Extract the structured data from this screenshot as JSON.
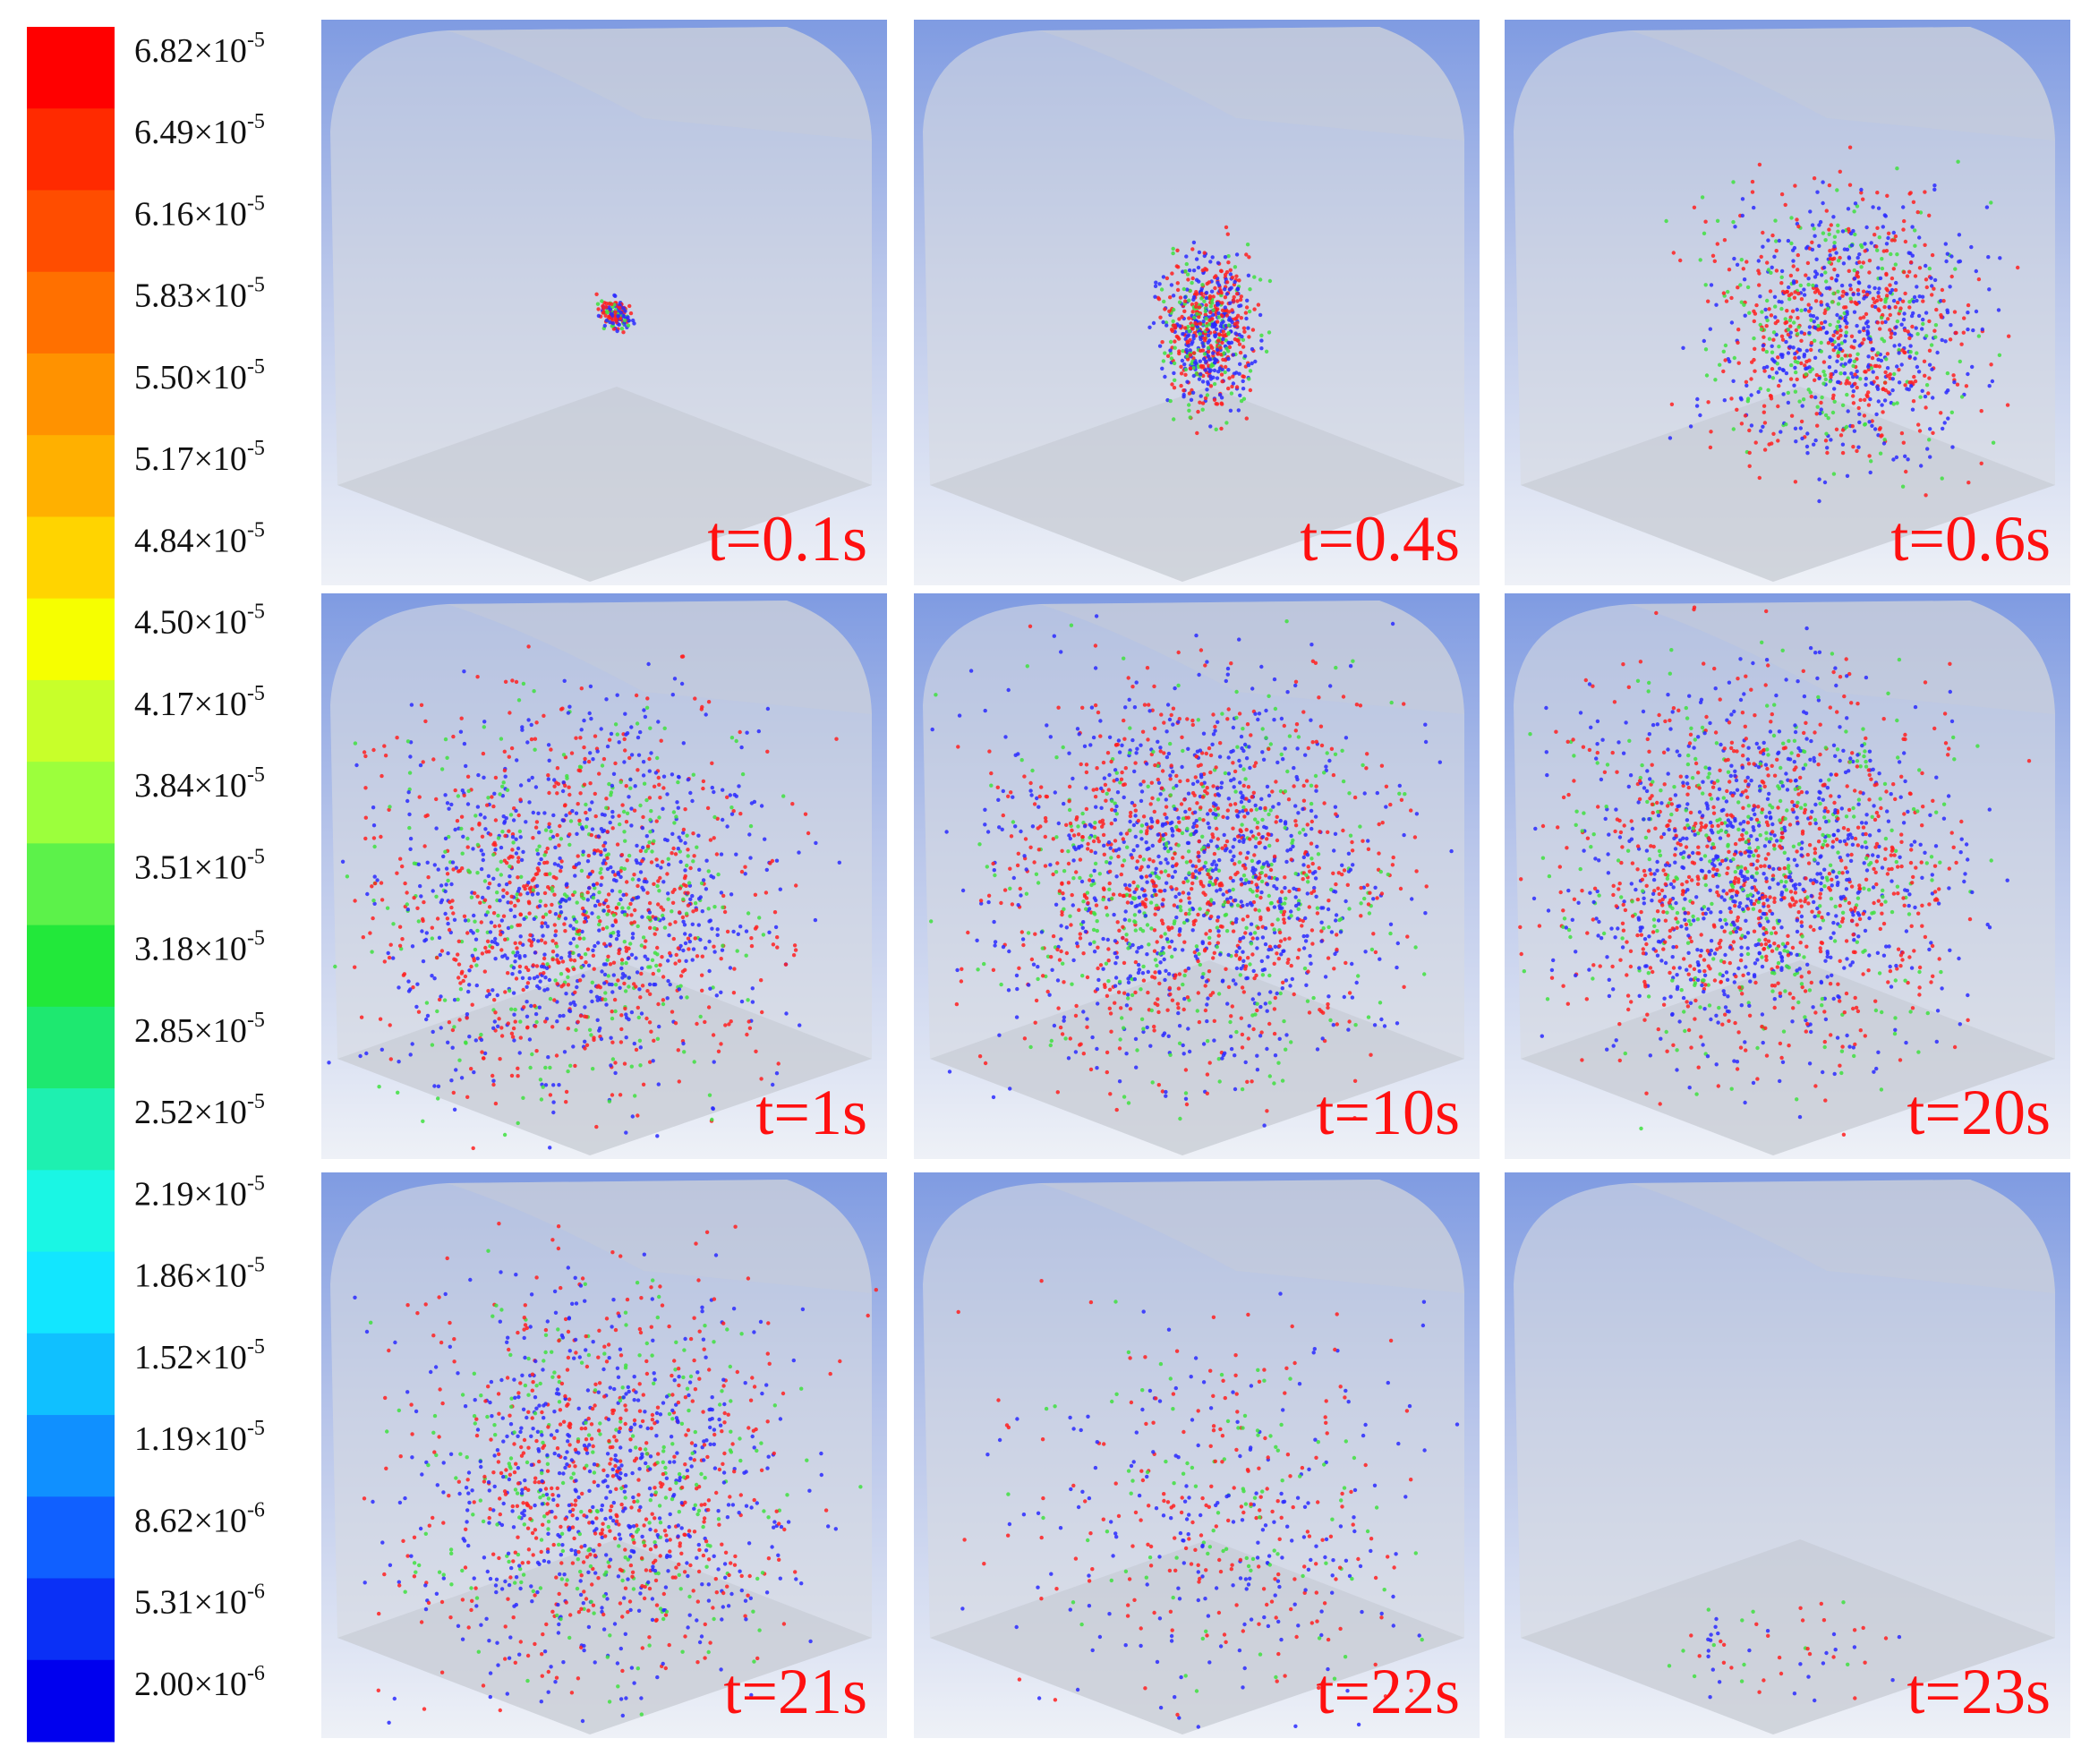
{
  "colorbar": {
    "labels": [
      {
        "base": "6.82×10",
        "exp": "-5"
      },
      {
        "base": "6.49×10",
        "exp": "-5"
      },
      {
        "base": "6.16×10",
        "exp": "-5"
      },
      {
        "base": "5.83×10",
        "exp": "-5"
      },
      {
        "base": "5.50×10",
        "exp": "-5"
      },
      {
        "base": "5.17×10",
        "exp": "-5"
      },
      {
        "base": "4.84×10",
        "exp": "-5"
      },
      {
        "base": "4.50×10",
        "exp": "-5"
      },
      {
        "base": "4.17×10",
        "exp": "-5"
      },
      {
        "base": "3.84×10",
        "exp": "-5"
      },
      {
        "base": "3.51×10",
        "exp": "-5"
      },
      {
        "base": "3.18×10",
        "exp": "-5"
      },
      {
        "base": "2.85×10",
        "exp": "-5"
      },
      {
        "base": "2.52×10",
        "exp": "-5"
      },
      {
        "base": "2.19×10",
        "exp": "-5"
      },
      {
        "base": "1.86×10",
        "exp": "-5"
      },
      {
        "base": "1.52×10",
        "exp": "-5"
      },
      {
        "base": "1.19×10",
        "exp": "-5"
      },
      {
        "base": "8.62×10",
        "exp": "-6"
      },
      {
        "base": "5.31×10",
        "exp": "-6"
      },
      {
        "base": "2.00×10",
        "exp": "-6"
      }
    ],
    "colors": [
      "#ff0000",
      "#ff2a00",
      "#ff4d00",
      "#ff7000",
      "#ff9200",
      "#ffb000",
      "#ffd400",
      "#f6ff00",
      "#c8ff2a",
      "#9cff3c",
      "#5cf24a",
      "#22e83a",
      "#1ee870",
      "#1ef0b0",
      "#1af6e4",
      "#12e6ff",
      "#10c0ff",
      "#1090ff",
      "#1060ff",
      "#0a30f6",
      "#0000ee"
    ]
  },
  "panels": [
    {
      "label": "t=0.1s"
    },
    {
      "label": "t=0.4s"
    },
    {
      "label": "t=0.6s"
    },
    {
      "label": "t=1s"
    },
    {
      "label": "t=10s"
    },
    {
      "label": "t=20s"
    },
    {
      "label": "t=21s"
    },
    {
      "label": "t=22s"
    },
    {
      "label": "t=23s"
    }
  ]
}
